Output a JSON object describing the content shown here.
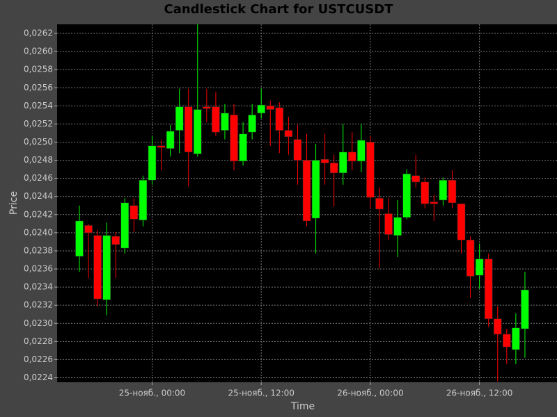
{
  "chart_data": {
    "type": "candlestick",
    "title": "Candlestick Chart for USTCUSDT",
    "x_label": "Time",
    "y_label": "Price",
    "categories": [
      null,
      null,
      null,
      null,
      null,
      null,
      null,
      null,
      "25-нояб., 00:00",
      null,
      null,
      null,
      null,
      null,
      null,
      null,
      null,
      null,
      null,
      null,
      "25-нояб., 12:00",
      null,
      null,
      null,
      null,
      null,
      null,
      null,
      null,
      null,
      null,
      null,
      "26-нояб., 00:00",
      null,
      null,
      null,
      null,
      null,
      null,
      null,
      null,
      null,
      null,
      null,
      "26-нояб., 12:00",
      null,
      null,
      null,
      null,
      null
    ],
    "open": [
      0.02374,
      0.02408,
      0.02397,
      0.02326,
      0.02396,
      0.02383,
      0.0243,
      0.02414,
      0.02458,
      0.02496,
      0.02493,
      0.02513,
      0.02539,
      0.02487,
      0.02539,
      0.02539,
      0.02513,
      0.0253,
      0.02479,
      0.02511,
      0.02532,
      0.0254,
      0.02538,
      0.02513,
      0.02503,
      0.0248,
      0.02416,
      0.02481,
      0.02477,
      0.02466,
      0.02489,
      0.02479,
      0.025,
      0.02438,
      0.02421,
      0.02397,
      0.02417,
      0.02463,
      0.02456,
      0.02434,
      0.02436,
      0.02458,
      0.02432,
      0.02392,
      0.02353,
      0.02371,
      0.02305,
      0.02288,
      0.02271,
      0.02294
    ],
    "high": [
      0.0243,
      0.0241,
      0.02403,
      0.02411,
      0.02401,
      0.02438,
      0.02438,
      0.02463,
      0.02507,
      0.02503,
      0.02519,
      0.02559,
      0.02559,
      0.0263,
      0.02559,
      0.02555,
      0.02542,
      0.02542,
      0.02522,
      0.02542,
      0.02559,
      0.02546,
      0.02544,
      0.02528,
      0.02519,
      0.02509,
      0.02498,
      0.02509,
      0.02486,
      0.0252,
      0.02511,
      0.0252,
      0.02507,
      0.0245,
      0.02438,
      0.02436,
      0.0247,
      0.02486,
      0.02461,
      0.02442,
      0.02461,
      0.02469,
      0.02432,
      0.02396,
      0.02388,
      0.02377,
      0.02319,
      0.02294,
      0.02311,
      0.02357
    ],
    "low": [
      0.02357,
      0.0235,
      0.02319,
      0.02309,
      0.0235,
      0.02377,
      0.02401,
      0.02407,
      0.02453,
      0.02469,
      0.02484,
      0.02488,
      0.02451,
      0.02484,
      0.02522,
      0.02507,
      0.02503,
      0.02469,
      0.02474,
      0.02503,
      0.02526,
      0.02496,
      0.02488,
      0.02486,
      0.02453,
      0.02407,
      0.02377,
      0.02453,
      0.02429,
      0.02453,
      0.02469,
      0.02467,
      0.02427,
      0.02361,
      0.02392,
      0.02373,
      0.02415,
      0.0245,
      0.02427,
      0.02413,
      0.0243,
      0.02427,
      0.02377,
      0.02328,
      0.02338,
      0.02296,
      0.02236,
      0.02255,
      0.02255,
      0.02262
    ],
    "close": [
      0.02413,
      0.024,
      0.02327,
      0.02397,
      0.02387,
      0.02433,
      0.02415,
      0.02458,
      0.02496,
      0.02494,
      0.02512,
      0.02539,
      0.02489,
      0.02536,
      0.02537,
      0.02511,
      0.02532,
      0.02479,
      0.02509,
      0.0253,
      0.02541,
      0.02536,
      0.02513,
      0.02506,
      0.0248,
      0.02413,
      0.0248,
      0.02477,
      0.02466,
      0.02489,
      0.02479,
      0.02502,
      0.02439,
      0.02426,
      0.02398,
      0.02417,
      0.02465,
      0.02456,
      0.02432,
      0.02432,
      0.02458,
      0.02433,
      0.02392,
      0.02352,
      0.02371,
      0.02305,
      0.02288,
      0.02274,
      0.02295,
      0.02337
    ],
    "up_color": "#00ff00",
    "down_color": "#ff0000",
    "ylim": [
      0.02235,
      0.0263
    ],
    "yticks": [
      {
        "value": 0.0224,
        "label": "0,0224"
      },
      {
        "value": 0.0226,
        "label": "0,0226"
      },
      {
        "value": 0.0228,
        "label": "0,0228"
      },
      {
        "value": 0.023,
        "label": "0,0230"
      },
      {
        "value": 0.0232,
        "label": "0,0232"
      },
      {
        "value": 0.0234,
        "label": "0,0234"
      },
      {
        "value": 0.0236,
        "label": "0,0236"
      },
      {
        "value": 0.0238,
        "label": "0,0238"
      },
      {
        "value": 0.024,
        "label": "0,0240"
      },
      {
        "value": 0.0242,
        "label": "0,0242"
      },
      {
        "value": 0.0244,
        "label": "0,0244"
      },
      {
        "value": 0.0246,
        "label": "0,0246"
      },
      {
        "value": 0.0248,
        "label": "0,0248"
      },
      {
        "value": 0.025,
        "label": "0,0250"
      },
      {
        "value": 0.0252,
        "label": "0,0252"
      },
      {
        "value": 0.0254,
        "label": "0,0254"
      },
      {
        "value": 0.0256,
        "label": "0,0256"
      },
      {
        "value": 0.0258,
        "label": "0,0258"
      },
      {
        "value": 0.026,
        "label": "0,0260"
      },
      {
        "value": 0.0262,
        "label": "0,0262"
      }
    ],
    "grid": true
  }
}
